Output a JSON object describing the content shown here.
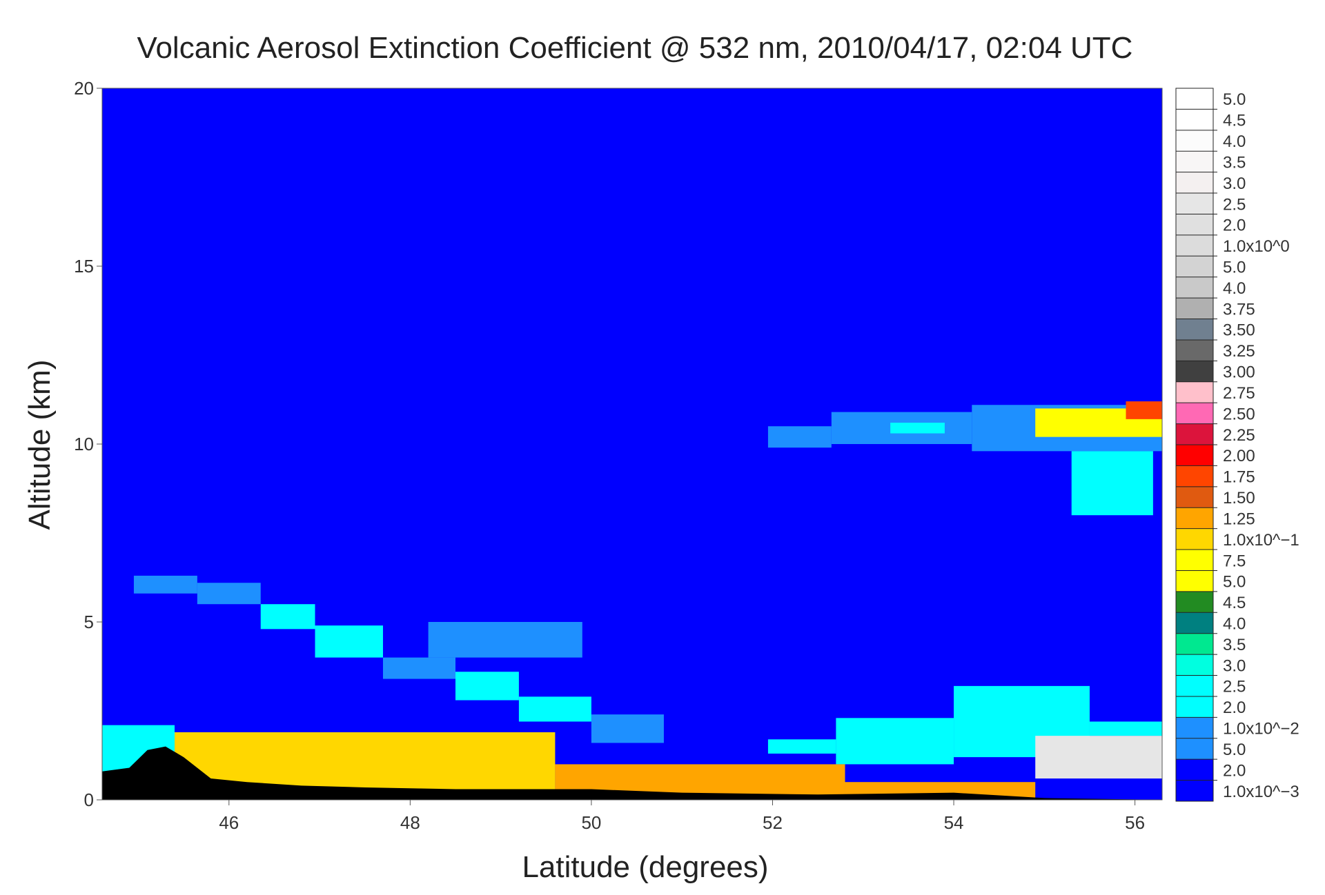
{
  "chart_data": {
    "type": "heatmap",
    "title": "Volcanic Aerosol Extinction Coefficient @ 532 nm, 2010/04/17, 02:04 UTC",
    "xlabel": "Latitude (degrees)",
    "ylabel": "Altitude (km)",
    "xlim": [
      44.6,
      56.3
    ],
    "ylim": [
      0,
      20
    ],
    "xticks": [
      46,
      48,
      50,
      52,
      54,
      56
    ],
    "yticks": [
      0,
      5,
      10,
      15,
      20
    ],
    "background_color": "#0000ff",
    "ground_color": "#000000",
    "colorbar": {
      "levels": [
        {
          "label": "5.0",
          "color": "#ffffff"
        },
        {
          "label": "4.5",
          "color": "#ffffff"
        },
        {
          "label": "4.0",
          "color": "#fcfcfc"
        },
        {
          "label": "3.5",
          "color": "#f8f6f6"
        },
        {
          "label": "3.0",
          "color": "#f4f0f0"
        },
        {
          "label": "2.5",
          "color": "#e6e6e6"
        },
        {
          "label": "2.0",
          "color": "#e0e0e0"
        },
        {
          "label": "1.0x10^0",
          "color": "#dcdcdc"
        },
        {
          "label": "5.0",
          "color": "#d3d3d3"
        },
        {
          "label": "4.0",
          "color": "#c9c9c9"
        },
        {
          "label": "3.75",
          "color": "#b0b0b0"
        },
        {
          "label": "3.50",
          "color": "#708090"
        },
        {
          "label": "3.25",
          "color": "#696969"
        },
        {
          "label": "3.00",
          "color": "#404040"
        },
        {
          "label": "2.75",
          "color": "#ffc0cb"
        },
        {
          "label": "2.50",
          "color": "#ff69b4"
        },
        {
          "label": "2.25",
          "color": "#dc143c"
        },
        {
          "label": "2.00",
          "color": "#ff0000"
        },
        {
          "label": "1.75",
          "color": "#ff4500"
        },
        {
          "label": "1.50",
          "color": "#e05a10"
        },
        {
          "label": "1.25",
          "color": "#ffa500"
        },
        {
          "label": "1.0x10^-1",
          "color": "#ffd700"
        },
        {
          "label": "7.5",
          "color": "#ffff00"
        },
        {
          "label": "5.0",
          "color": "#ffff00"
        },
        {
          "label": "4.5",
          "color": "#228b22"
        },
        {
          "label": "4.0",
          "color": "#008080"
        },
        {
          "label": "3.5",
          "color": "#00e890"
        },
        {
          "label": "3.0",
          "color": "#00ffe0"
        },
        {
          "label": "2.5",
          "color": "#00ffff"
        },
        {
          "label": "2.0",
          "color": "#00ffff"
        },
        {
          "label": "1.0x10^-2",
          "color": "#1e90ff"
        },
        {
          "label": "5.0",
          "color": "#1e90ff"
        },
        {
          "label": "2.0",
          "color": "#0000ff"
        },
        {
          "label": "1.0x10^-3",
          "color": "#0000ff"
        }
      ]
    },
    "features": [
      {
        "name": "upper-plume-west",
        "lat": [
          51.95,
          52.65
        ],
        "alt": [
          9.9,
          10.5
        ],
        "color": "#1e90ff"
      },
      {
        "name": "upper-plume-mid",
        "lat": [
          52.65,
          54.2
        ],
        "alt": [
          10.0,
          10.9
        ],
        "color": "#1e90ff"
      },
      {
        "name": "upper-plume-mid-core",
        "lat": [
          53.3,
          53.9
        ],
        "alt": [
          10.3,
          10.6
        ],
        "color": "#00ffff"
      },
      {
        "name": "upper-plume-east",
        "lat": [
          54.2,
          56.3
        ],
        "alt": [
          9.8,
          11.1
        ],
        "color": "#1e90ff"
      },
      {
        "name": "upper-plume-east-core",
        "lat": [
          54.9,
          56.3
        ],
        "alt": [
          10.2,
          11.0
        ],
        "color": "#ffff00"
      },
      {
        "name": "upper-plume-east-red",
        "lat": [
          55.9,
          56.3
        ],
        "alt": [
          10.7,
          11.2
        ],
        "color": "#ff4500"
      },
      {
        "name": "upper-plume-fall",
        "lat": [
          55.3,
          56.2
        ],
        "alt": [
          8.0,
          9.8
        ],
        "color": "#00ffff"
      },
      {
        "name": "lower-plume-1",
        "lat": [
          44.95,
          45.65
        ],
        "alt": [
          5.8,
          6.3
        ],
        "color": "#1e90ff"
      },
      {
        "name": "lower-plume-2",
        "lat": [
          45.65,
          46.35
        ],
        "alt": [
          5.5,
          6.1
        ],
        "color": "#1e90ff"
      },
      {
        "name": "lower-plume-3",
        "lat": [
          46.35,
          46.95
        ],
        "alt": [
          4.8,
          5.5
        ],
        "color": "#00ffff"
      },
      {
        "name": "lower-plume-4",
        "lat": [
          46.95,
          47.7
        ],
        "alt": [
          4.0,
          4.9
        ],
        "color": "#00ffff"
      },
      {
        "name": "lower-plume-box",
        "lat": [
          48.2,
          49.9
        ],
        "alt": [
          4.0,
          5.0
        ],
        "color": "#1e90ff"
      },
      {
        "name": "lower-plume-5",
        "lat": [
          47.7,
          48.5
        ],
        "alt": [
          3.4,
          4.0
        ],
        "color": "#1e90ff"
      },
      {
        "name": "lower-plume-6",
        "lat": [
          48.5,
          49.2
        ],
        "alt": [
          2.8,
          3.6
        ],
        "color": "#00ffff"
      },
      {
        "name": "lower-plume-7",
        "lat": [
          49.2,
          50.0
        ],
        "alt": [
          2.2,
          2.9
        ],
        "color": "#00ffff"
      },
      {
        "name": "lower-plume-8",
        "lat": [
          50.0,
          50.8
        ],
        "alt": [
          1.6,
          2.4
        ],
        "color": "#1e90ff"
      },
      {
        "name": "east-low-layer-1",
        "lat": [
          51.95,
          52.7
        ],
        "alt": [
          1.3,
          1.7
        ],
        "color": "#00ffff"
      },
      {
        "name": "east-low-layer-2",
        "lat": [
          52.7,
          54.0
        ],
        "alt": [
          1.0,
          2.3
        ],
        "color": "#00ffff"
      },
      {
        "name": "east-low-layer-3",
        "lat": [
          54.0,
          55.5
        ],
        "alt": [
          1.2,
          3.2
        ],
        "color": "#00ffff"
      },
      {
        "name": "east-low-layer-4",
        "lat": [
          55.5,
          56.3
        ],
        "alt": [
          1.8,
          2.2
        ],
        "color": "#00ffff"
      },
      {
        "name": "east-cloud",
        "lat": [
          54.9,
          56.3
        ],
        "alt": [
          0.6,
          1.8
        ],
        "color": "#e6e6e6"
      },
      {
        "name": "boundary-layer-west",
        "lat": [
          44.6,
          45.4
        ],
        "alt": [
          0.2,
          2.1
        ],
        "color": "#00ffff"
      },
      {
        "name": "boundary-layer-main",
        "lat": [
          45.4,
          49.6
        ],
        "alt": [
          0.2,
          1.9
        ],
        "color": "#ffd700"
      },
      {
        "name": "boundary-layer-tail",
        "lat": [
          49.6,
          52.8
        ],
        "alt": [
          0.1,
          1.0
        ],
        "color": "#ffa500"
      },
      {
        "name": "boundary-layer-far",
        "lat": [
          52.8,
          54.9
        ],
        "alt": [
          0.0,
          0.5
        ],
        "color": "#ffa500"
      }
    ],
    "ground_profile": [
      {
        "lat": 44.6,
        "alt": 0.8
      },
      {
        "lat": 44.9,
        "alt": 0.9
      },
      {
        "lat": 45.1,
        "alt": 1.4
      },
      {
        "lat": 45.3,
        "alt": 1.5
      },
      {
        "lat": 45.5,
        "alt": 1.2
      },
      {
        "lat": 45.8,
        "alt": 0.6
      },
      {
        "lat": 46.2,
        "alt": 0.5
      },
      {
        "lat": 46.8,
        "alt": 0.4
      },
      {
        "lat": 47.5,
        "alt": 0.35
      },
      {
        "lat": 48.5,
        "alt": 0.3
      },
      {
        "lat": 50.0,
        "alt": 0.3
      },
      {
        "lat": 51.0,
        "alt": 0.2
      },
      {
        "lat": 52.5,
        "alt": 0.15
      },
      {
        "lat": 54.0,
        "alt": 0.2
      },
      {
        "lat": 55.0,
        "alt": 0.05
      },
      {
        "lat": 56.3,
        "alt": 0.0
      }
    ]
  }
}
